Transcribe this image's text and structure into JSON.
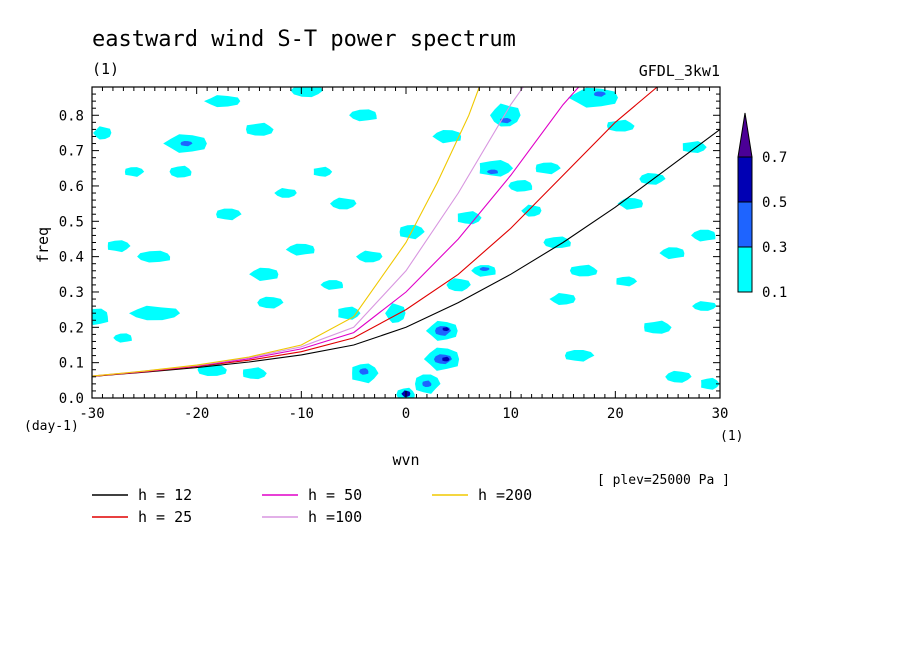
{
  "chart_data": {
    "type": "heatmap",
    "title": "eastward wind S-T power spectrum",
    "subtitle_left": "(1)",
    "subtitle_right": "GFDL_3kw1",
    "xlabel": "wvn",
    "ylabel": "freq",
    "x_unit": "(1)",
    "y_unit": "(day-1)",
    "xlim": [
      -30,
      30
    ],
    "ylim": [
      0,
      0.88
    ],
    "x_ticks": [
      -30,
      -20,
      -10,
      0,
      10,
      20,
      30
    ],
    "x_tick_labels": [
      "-30",
      "-20",
      "-10",
      "0",
      "10",
      "20",
      "30"
    ],
    "y_ticks": [
      0,
      0.1,
      0.2,
      0.3,
      0.4,
      0.5,
      0.6,
      0.7,
      0.8
    ],
    "y_tick_labels": [
      "0.0",
      "0.1",
      "0.2",
      "0.3",
      "0.4",
      "0.5",
      "0.6",
      "0.7",
      "0.8"
    ],
    "annotation": "[ plev=25000 Pa ]",
    "colorbar": {
      "levels": [
        0.1,
        0.3,
        0.5,
        0.7
      ],
      "labels": [
        "0.1",
        "0.3",
        "0.5",
        "0.7"
      ],
      "colors": [
        "#00ffff",
        "#1e64ff",
        "#0000b4",
        "#4b0096"
      ]
    },
    "patches": [
      {
        "x": -29.5,
        "y": 0.23,
        "rx": 1.3,
        "ry": 0.025,
        "level": 0.1
      },
      {
        "x": -24.0,
        "y": 0.24,
        "rx": 2.5,
        "ry": 0.022,
        "level": 0.1
      },
      {
        "x": -27.5,
        "y": 0.43,
        "rx": 1.2,
        "ry": 0.018,
        "level": 0.1
      },
      {
        "x": -24.0,
        "y": 0.4,
        "rx": 1.8,
        "ry": 0.018,
        "level": 0.1
      },
      {
        "x": -29.0,
        "y": 0.75,
        "rx": 0.9,
        "ry": 0.02,
        "level": 0.1
      },
      {
        "x": -26.0,
        "y": 0.64,
        "rx": 1.0,
        "ry": 0.015,
        "level": 0.1
      },
      {
        "x": -21.5,
        "y": 0.64,
        "rx": 1.2,
        "ry": 0.018,
        "level": 0.1
      },
      {
        "x": -17.5,
        "y": 0.84,
        "rx": 1.8,
        "ry": 0.018,
        "level": 0.1
      },
      {
        "x": -17.0,
        "y": 0.52,
        "rx": 1.3,
        "ry": 0.018,
        "level": 0.1
      },
      {
        "x": -18.5,
        "y": 0.08,
        "rx": 1.6,
        "ry": 0.02,
        "level": 0.1
      },
      {
        "x": -21.0,
        "y": 0.72,
        "rx": 2.2,
        "ry": 0.028,
        "level": 0.1
      },
      {
        "x": -21.0,
        "y": 0.72,
        "rx": 0.6,
        "ry": 0.008,
        "level": 0.3
      },
      {
        "x": -14.0,
        "y": 0.76,
        "rx": 1.5,
        "ry": 0.02,
        "level": 0.1
      },
      {
        "x": -13.5,
        "y": 0.35,
        "rx": 1.5,
        "ry": 0.02,
        "level": 0.1
      },
      {
        "x": -13.0,
        "y": 0.27,
        "rx": 1.3,
        "ry": 0.018,
        "level": 0.1
      },
      {
        "x": -14.5,
        "y": 0.07,
        "rx": 1.3,
        "ry": 0.018,
        "level": 0.1
      },
      {
        "x": -10.0,
        "y": 0.42,
        "rx": 1.5,
        "ry": 0.018,
        "level": 0.1
      },
      {
        "x": -9.5,
        "y": 0.87,
        "rx": 1.6,
        "ry": 0.02,
        "level": 0.1
      },
      {
        "x": -8.0,
        "y": 0.64,
        "rx": 1.0,
        "ry": 0.015,
        "level": 0.1
      },
      {
        "x": -7.0,
        "y": 0.32,
        "rx": 1.2,
        "ry": 0.015,
        "level": 0.1
      },
      {
        "x": -6.0,
        "y": 0.55,
        "rx": 1.3,
        "ry": 0.018,
        "level": 0.1
      },
      {
        "x": -5.5,
        "y": 0.24,
        "rx": 1.2,
        "ry": 0.02,
        "level": 0.1
      },
      {
        "x": -4.0,
        "y": 0.8,
        "rx": 1.5,
        "ry": 0.018,
        "level": 0.1
      },
      {
        "x": -3.5,
        "y": 0.4,
        "rx": 1.3,
        "ry": 0.018,
        "level": 0.1
      },
      {
        "x": -4.0,
        "y": 0.07,
        "rx": 1.4,
        "ry": 0.03,
        "level": 0.1
      },
      {
        "x": -4.0,
        "y": 0.075,
        "rx": 0.5,
        "ry": 0.01,
        "level": 0.3
      },
      {
        "x": -1.0,
        "y": 0.24,
        "rx": 1.0,
        "ry": 0.03,
        "level": 0.1
      },
      {
        "x": 0.5,
        "y": 0.47,
        "rx": 1.3,
        "ry": 0.022,
        "level": 0.1
      },
      {
        "x": 0.0,
        "y": 0.01,
        "rx": 1.0,
        "ry": 0.02,
        "level": 0.1
      },
      {
        "x": 0.0,
        "y": 0.012,
        "rx": 0.45,
        "ry": 0.01,
        "level": 0.5
      },
      {
        "x": 2.0,
        "y": 0.04,
        "rx": 1.3,
        "ry": 0.03,
        "level": 0.1
      },
      {
        "x": 2.0,
        "y": 0.04,
        "rx": 0.5,
        "ry": 0.01,
        "level": 0.3
      },
      {
        "x": 3.5,
        "y": 0.19,
        "rx": 1.6,
        "ry": 0.03,
        "level": 0.1
      },
      {
        "x": 3.5,
        "y": 0.19,
        "rx": 0.8,
        "ry": 0.015,
        "level": 0.3
      },
      {
        "x": 3.8,
        "y": 0.195,
        "rx": 0.35,
        "ry": 0.006,
        "level": 0.5
      },
      {
        "x": 3.5,
        "y": 0.11,
        "rx": 1.8,
        "ry": 0.035,
        "level": 0.1
      },
      {
        "x": 3.5,
        "y": 0.11,
        "rx": 0.9,
        "ry": 0.015,
        "level": 0.3
      },
      {
        "x": 3.8,
        "y": 0.11,
        "rx": 0.4,
        "ry": 0.007,
        "level": 0.5
      },
      {
        "x": 4.0,
        "y": 0.74,
        "rx": 1.5,
        "ry": 0.02,
        "level": 0.1
      },
      {
        "x": 5.0,
        "y": 0.32,
        "rx": 1.2,
        "ry": 0.02,
        "level": 0.1
      },
      {
        "x": 6.0,
        "y": 0.51,
        "rx": 1.3,
        "ry": 0.02,
        "level": 0.1
      },
      {
        "x": 7.5,
        "y": 0.36,
        "rx": 1.3,
        "ry": 0.018,
        "level": 0.1
      },
      {
        "x": 7.5,
        "y": 0.365,
        "rx": 0.5,
        "ry": 0.006,
        "level": 0.3
      },
      {
        "x": 8.5,
        "y": 0.65,
        "rx": 1.8,
        "ry": 0.025,
        "level": 0.1
      },
      {
        "x": 8.3,
        "y": 0.64,
        "rx": 0.6,
        "ry": 0.007,
        "level": 0.3
      },
      {
        "x": 9.5,
        "y": 0.8,
        "rx": 1.5,
        "ry": 0.035,
        "level": 0.1
      },
      {
        "x": 9.5,
        "y": 0.785,
        "rx": 0.6,
        "ry": 0.008,
        "level": 0.3
      },
      {
        "x": 11.0,
        "y": 0.6,
        "rx": 1.3,
        "ry": 0.018,
        "level": 0.1
      },
      {
        "x": 12.0,
        "y": 0.53,
        "rx": 1.0,
        "ry": 0.018,
        "level": 0.1
      },
      {
        "x": 13.5,
        "y": 0.65,
        "rx": 1.3,
        "ry": 0.018,
        "level": 0.1
      },
      {
        "x": 14.5,
        "y": 0.44,
        "rx": 1.5,
        "ry": 0.018,
        "level": 0.1
      },
      {
        "x": 15.0,
        "y": 0.28,
        "rx": 1.3,
        "ry": 0.018,
        "level": 0.1
      },
      {
        "x": 16.5,
        "y": 0.12,
        "rx": 1.5,
        "ry": 0.018,
        "level": 0.1
      },
      {
        "x": 17.0,
        "y": 0.36,
        "rx": 1.5,
        "ry": 0.018,
        "level": 0.1
      },
      {
        "x": 18.0,
        "y": 0.85,
        "rx": 2.5,
        "ry": 0.03,
        "level": 0.1
      },
      {
        "x": 18.5,
        "y": 0.86,
        "rx": 0.6,
        "ry": 0.008,
        "level": 0.3
      },
      {
        "x": 20.5,
        "y": 0.77,
        "rx": 1.5,
        "ry": 0.018,
        "level": 0.1
      },
      {
        "x": 21.5,
        "y": 0.55,
        "rx": 1.3,
        "ry": 0.018,
        "level": 0.1
      },
      {
        "x": 23.5,
        "y": 0.62,
        "rx": 1.3,
        "ry": 0.018,
        "level": 0.1
      },
      {
        "x": 24.0,
        "y": 0.2,
        "rx": 1.5,
        "ry": 0.02,
        "level": 0.1
      },
      {
        "x": 25.5,
        "y": 0.41,
        "rx": 1.3,
        "ry": 0.018,
        "level": 0.1
      },
      {
        "x": 26.0,
        "y": 0.06,
        "rx": 1.3,
        "ry": 0.018,
        "level": 0.1
      },
      {
        "x": 27.5,
        "y": 0.71,
        "rx": 1.3,
        "ry": 0.018,
        "level": 0.1
      },
      {
        "x": 28.5,
        "y": 0.46,
        "rx": 1.3,
        "ry": 0.018,
        "level": 0.1
      },
      {
        "x": 28.5,
        "y": 0.26,
        "rx": 1.2,
        "ry": 0.015,
        "level": 0.1
      },
      {
        "x": 29.0,
        "y": 0.04,
        "rx": 1.0,
        "ry": 0.018,
        "level": 0.1
      },
      {
        "x": -27.0,
        "y": 0.17,
        "rx": 1.0,
        "ry": 0.014,
        "level": 0.1
      },
      {
        "x": -11.5,
        "y": 0.58,
        "rx": 1.1,
        "ry": 0.015,
        "level": 0.1
      },
      {
        "x": 21.0,
        "y": 0.33,
        "rx": 1.1,
        "ry": 0.015,
        "level": 0.1
      }
    ],
    "series": [
      {
        "name": "h = 12",
        "h": 12,
        "color": "#000000",
        "x": [
          -30,
          -25,
          -20,
          -15,
          -10,
          -5,
          0,
          5,
          10,
          15,
          20,
          25,
          30
        ],
        "y": [
          0.061,
          0.073,
          0.086,
          0.102,
          0.122,
          0.15,
          0.2,
          0.27,
          0.35,
          0.44,
          0.54,
          0.65,
          0.76
        ]
      },
      {
        "name": "h = 25",
        "h": 25,
        "color": "#e00000",
        "x": [
          -30,
          -25,
          -20,
          -15,
          -10,
          -5,
          0,
          5,
          10,
          15,
          20,
          24
        ],
        "y": [
          0.061,
          0.074,
          0.089,
          0.107,
          0.131,
          0.17,
          0.25,
          0.35,
          0.48,
          0.63,
          0.78,
          0.88
        ]
      },
      {
        "name": "h = 50",
        "h": 50,
        "color": "#e000c8",
        "x": [
          -30,
          -25,
          -20,
          -15,
          -10,
          -5,
          0,
          5,
          10,
          15,
          16.5
        ],
        "y": [
          0.062,
          0.075,
          0.091,
          0.111,
          0.139,
          0.185,
          0.3,
          0.45,
          0.63,
          0.83,
          0.88
        ]
      },
      {
        "name": "h =100",
        "h": 100,
        "color": "#d896e0",
        "x": [
          -30,
          -25,
          -20,
          -15,
          -10,
          -5,
          0,
          5,
          10,
          11.2
        ],
        "y": [
          0.062,
          0.076,
          0.092,
          0.114,
          0.145,
          0.2,
          0.36,
          0.58,
          0.83,
          0.88
        ]
      },
      {
        "name": "h =200",
        "h": 200,
        "color": "#f0c800",
        "x": [
          -30,
          -25,
          -20,
          -15,
          -10,
          -5,
          0,
          3,
          6,
          7
        ],
        "y": [
          0.062,
          0.076,
          0.093,
          0.116,
          0.15,
          0.23,
          0.44,
          0.61,
          0.8,
          0.88
        ]
      }
    ]
  }
}
